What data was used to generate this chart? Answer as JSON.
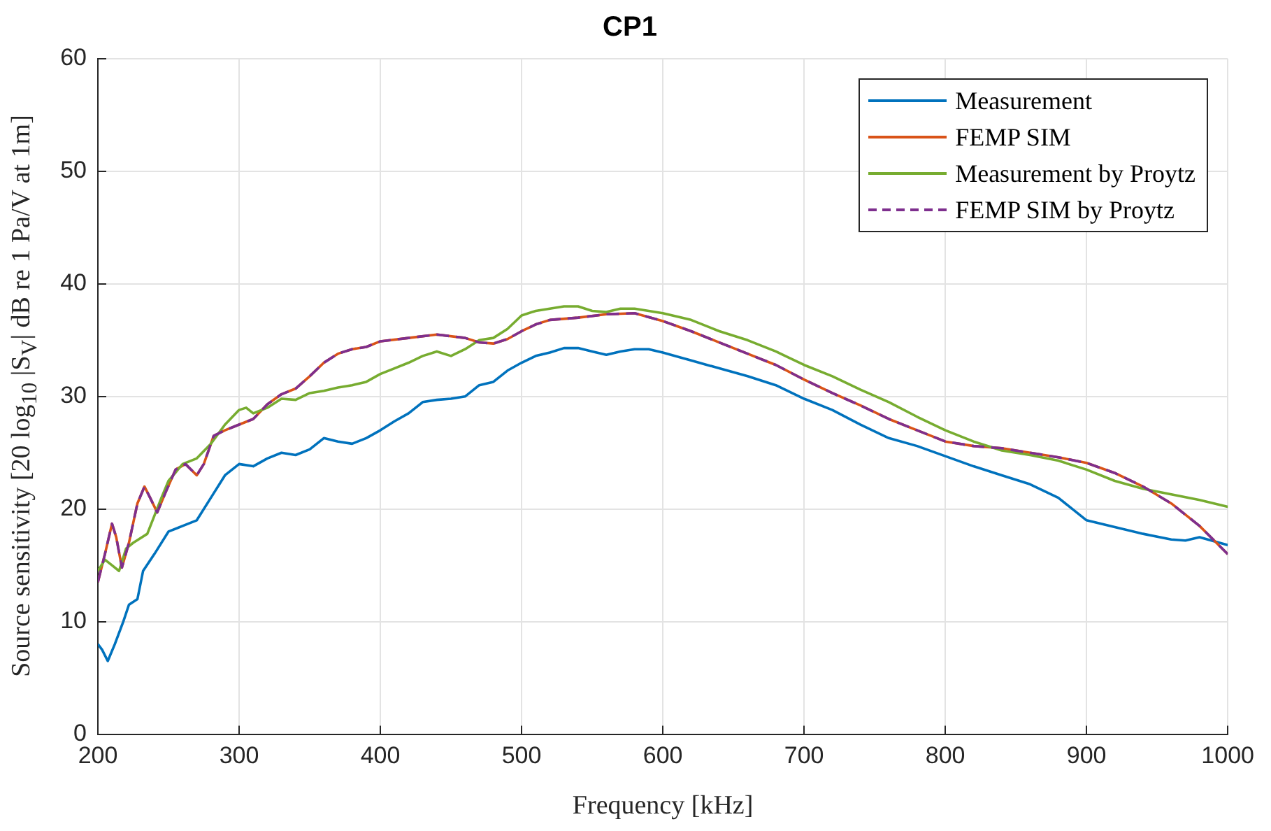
{
  "chart_data": {
    "type": "line",
    "title": "CP1",
    "xlabel": "Frequency [kHz]",
    "ylabel": "Source sensitivity [20 log$_{10}$ |S$_{V}$| dB re 1 Pa/V at 1m]",
    "xlim": [
      200,
      1000
    ],
    "xticks": [
      200,
      300,
      400,
      500,
      600,
      700,
      800,
      900,
      1000
    ],
    "ylim": [
      0,
      60
    ],
    "yticks": [
      0,
      10,
      20,
      30,
      40,
      50,
      60
    ],
    "grid": true,
    "legend": "top right",
    "marker": "none",
    "series": [
      {
        "name": "Measurement",
        "color": "#0072bd",
        "line_style": "solid",
        "x": [
          200,
          203,
          207,
          212,
          218,
          222,
          228,
          232,
          240,
          250,
          260,
          270,
          280,
          290,
          300,
          310,
          320,
          330,
          340,
          350,
          360,
          370,
          380,
          390,
          400,
          410,
          420,
          430,
          440,
          450,
          460,
          470,
          480,
          490,
          500,
          510,
          520,
          530,
          540,
          550,
          560,
          570,
          580,
          590,
          600,
          620,
          640,
          660,
          680,
          700,
          720,
          740,
          760,
          780,
          800,
          820,
          840,
          860,
          880,
          900,
          920,
          940,
          960,
          970,
          980,
          1000
        ],
        "values": [
          8,
          7.5,
          6.5,
          8,
          10,
          11.5,
          12,
          14.5,
          16,
          18,
          18.5,
          19,
          21,
          23,
          24,
          23.8,
          24.5,
          25,
          24.8,
          25.3,
          26.3,
          26,
          25.8,
          26.3,
          27,
          27.8,
          28.5,
          29.5,
          29.7,
          29.8,
          30,
          31,
          31.3,
          32.3,
          33,
          33.6,
          33.9,
          34.3,
          34.3,
          34,
          33.7,
          34,
          34.2,
          34.2,
          33.9,
          33.2,
          32.5,
          31.8,
          31,
          29.8,
          28.8,
          27.5,
          26.3,
          25.6,
          24.7,
          23.8,
          23,
          22.2,
          21,
          19,
          18.4,
          17.8,
          17.3,
          17.2,
          17.5,
          16.8
        ]
      },
      {
        "name": "FEMP SIM",
        "color": "#d95319",
        "line_style": "solid",
        "x": [
          200,
          205,
          210,
          213,
          217,
          222,
          228,
          233,
          237,
          242,
          248,
          255,
          262,
          270,
          275,
          282,
          290,
          300,
          310,
          320,
          330,
          340,
          350,
          360,
          370,
          380,
          390,
          400,
          420,
          440,
          460,
          470,
          480,
          490,
          500,
          510,
          520,
          540,
          560,
          580,
          600,
          620,
          640,
          660,
          680,
          700,
          720,
          740,
          760,
          780,
          800,
          820,
          840,
          860,
          880,
          900,
          920,
          940,
          960,
          980,
          1000
        ],
        "values": [
          13.5,
          16,
          18.7,
          17.5,
          14.8,
          17,
          20.5,
          22,
          21,
          19.7,
          21.5,
          23.5,
          24,
          23,
          24,
          26.5,
          27,
          27.5,
          28,
          29.3,
          30.2,
          30.7,
          31.8,
          33,
          33.8,
          34.2,
          34.4,
          34.9,
          35.2,
          35.5,
          35.2,
          34.8,
          34.7,
          35.1,
          35.8,
          36.4,
          36.8,
          37,
          37.3,
          37.4,
          36.7,
          35.8,
          34.8,
          33.8,
          32.8,
          31.5,
          30.3,
          29.2,
          28,
          27,
          26,
          25.6,
          25.4,
          25,
          24.6,
          24.1,
          23.2,
          22,
          20.5,
          18.5,
          16
        ]
      },
      {
        "name": "Measurement by Proytz",
        "color": "#77ac30",
        "line_style": "solid",
        "x": [
          200,
          205,
          210,
          215,
          220,
          225,
          235,
          245,
          250,
          260,
          270,
          280,
          290,
          300,
          305,
          310,
          320,
          330,
          340,
          350,
          360,
          370,
          380,
          390,
          400,
          410,
          420,
          430,
          440,
          450,
          460,
          470,
          480,
          490,
          500,
          510,
          520,
          530,
          540,
          550,
          560,
          570,
          580,
          600,
          620,
          640,
          660,
          680,
          700,
          720,
          740,
          760,
          780,
          800,
          820,
          840,
          860,
          880,
          900,
          920,
          940,
          960,
          980,
          1000
        ],
        "values": [
          14.5,
          15.5,
          15,
          14.5,
          16.5,
          17,
          17.8,
          21,
          22.5,
          24,
          24.5,
          25.8,
          27.5,
          28.8,
          29,
          28.5,
          29,
          29.8,
          29.7,
          30.3,
          30.5,
          30.8,
          31,
          31.3,
          32,
          32.5,
          33,
          33.6,
          34,
          33.6,
          34.2,
          35,
          35.2,
          36,
          37.2,
          37.6,
          37.8,
          38,
          38,
          37.6,
          37.5,
          37.8,
          37.8,
          37.4,
          36.8,
          35.8,
          35,
          34,
          32.8,
          31.8,
          30.6,
          29.5,
          28.2,
          27,
          26,
          25.2,
          24.8,
          24.3,
          23.5,
          22.5,
          21.8,
          21.3,
          20.8,
          20.2
        ]
      },
      {
        "name": "FEMP SIM by Proytz",
        "color": "#7e2f8e",
        "line_style": "dashed",
        "x": [
          200,
          205,
          210,
          213,
          217,
          222,
          228,
          233,
          237,
          242,
          248,
          255,
          262,
          270,
          275,
          282,
          290,
          300,
          310,
          320,
          330,
          340,
          350,
          360,
          370,
          380,
          390,
          400,
          420,
          440,
          460,
          470,
          480,
          490,
          500,
          510,
          520,
          540,
          560,
          580,
          600,
          620,
          640,
          660,
          680,
          700,
          720,
          740,
          760,
          780,
          800,
          820,
          840,
          860,
          880,
          900,
          920,
          940,
          960,
          980,
          1000
        ],
        "values": [
          13.5,
          16,
          18.7,
          17.5,
          14.8,
          17,
          20.5,
          22,
          21,
          19.7,
          21.5,
          23.5,
          24,
          23,
          24,
          26.5,
          27,
          27.5,
          28,
          29.3,
          30.2,
          30.7,
          31.8,
          33,
          33.8,
          34.2,
          34.4,
          34.9,
          35.2,
          35.5,
          35.2,
          34.8,
          34.7,
          35.1,
          35.8,
          36.4,
          36.8,
          37,
          37.3,
          37.4,
          36.7,
          35.8,
          34.8,
          33.8,
          32.8,
          31.5,
          30.3,
          29.2,
          28,
          27,
          26,
          25.6,
          25.4,
          25,
          24.6,
          24.1,
          23.2,
          22,
          20.5,
          18.5,
          16
        ]
      }
    ]
  }
}
